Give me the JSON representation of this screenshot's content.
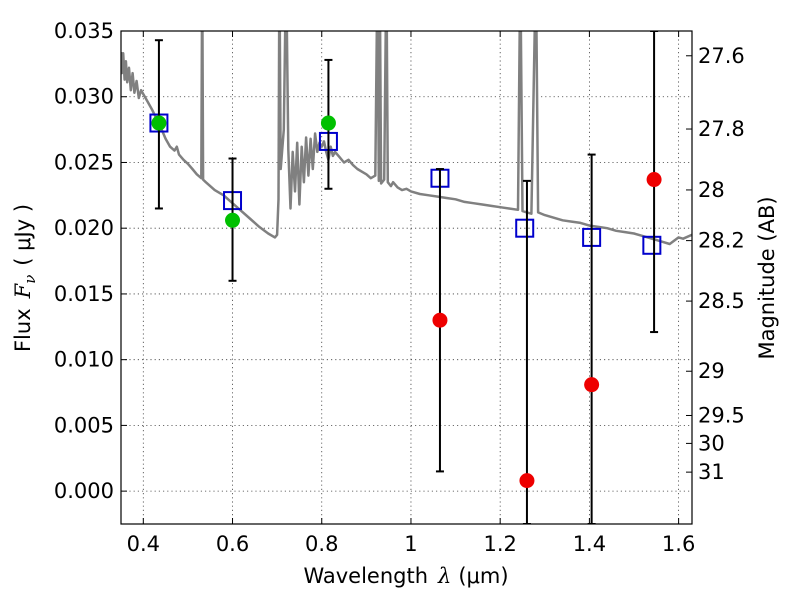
{
  "chart_data": {
    "type": "scatter",
    "title": "",
    "xlabel": "Wavelength",
    "xlabel_symbol": "λ",
    "xlabel_unit": "(μm)",
    "ylabel": "Flux",
    "ylabel_symbol": "F",
    "ylabel_subscript": "ν",
    "ylabel_unit": "( μJy )",
    "y2label": "Magnitude (AB)",
    "xlim": [
      0.35,
      1.63
    ],
    "ylim": [
      -0.0025,
      0.035
    ],
    "grid": true,
    "x_ticks": [
      0.4,
      0.6,
      0.8,
      1.0,
      1.2,
      1.4,
      1.6
    ],
    "x_tick_labels": [
      "0.4",
      "0.6",
      "0.8",
      "1",
      "1.2",
      "1.4",
      "1.6"
    ],
    "y_ticks": [
      0.0,
      0.005,
      0.01,
      0.015,
      0.02,
      0.025,
      0.03,
      0.035
    ],
    "y_tick_labels": [
      "0.000",
      "0.005",
      "0.010",
      "0.015",
      "0.020",
      "0.025",
      "0.030",
      "0.035"
    ],
    "mag_ticks": [
      27.6,
      27.8,
      28.0,
      28.2,
      28.5,
      29.0,
      29.5,
      30.0,
      31.0
    ],
    "mag_tick_labels": [
      "27.6",
      "27.8",
      "28",
      "28.2",
      "28.5",
      "29",
      "29.5",
      "30",
      "31"
    ],
    "colors": {
      "template": "#808080",
      "model": "#0000cc",
      "detected": "#00c000",
      "undetected": "#ee0000",
      "errorbar": "#000000"
    },
    "series": [
      {
        "kind": "line",
        "points": [
          [
            0.35,
            0.0334
          ],
          [
            0.352,
            0.0318
          ],
          [
            0.355,
            0.0333
          ],
          [
            0.358,
            0.0313
          ],
          [
            0.361,
            0.0327
          ],
          [
            0.364,
            0.0311
          ],
          [
            0.368,
            0.0322
          ],
          [
            0.372,
            0.0305
          ],
          [
            0.376,
            0.0318
          ],
          [
            0.38,
            0.0303
          ],
          [
            0.385,
            0.0312
          ],
          [
            0.39,
            0.0299
          ],
          [
            0.395,
            0.0305
          ],
          [
            0.4,
            0.0302
          ],
          [
            0.41,
            0.0296
          ],
          [
            0.42,
            0.029
          ],
          [
            0.43,
            0.0283
          ],
          [
            0.44,
            0.0276
          ],
          [
            0.45,
            0.0268
          ],
          [
            0.46,
            0.0262
          ],
          [
            0.47,
            0.0259
          ],
          [
            0.475,
            0.0262
          ],
          [
            0.48,
            0.0256
          ],
          [
            0.49,
            0.0252
          ],
          [
            0.5,
            0.0249
          ],
          [
            0.51,
            0.0245
          ],
          [
            0.52,
            0.0241
          ],
          [
            0.53,
            0.0238
          ],
          [
            0.532,
            0.04
          ],
          [
            0.534,
            0.0237
          ],
          [
            0.54,
            0.0235
          ],
          [
            0.56,
            0.0229
          ],
          [
            0.58,
            0.0225
          ],
          [
            0.6,
            0.0219
          ],
          [
            0.62,
            0.0213
          ],
          [
            0.64,
            0.0207
          ],
          [
            0.66,
            0.0201
          ],
          [
            0.68,
            0.0196
          ],
          [
            0.695,
            0.0193
          ],
          [
            0.7,
            0.0195
          ],
          [
            0.703,
            0.0222
          ],
          [
            0.705,
            0.04
          ],
          [
            0.708,
            0.0245
          ],
          [
            0.715,
            0.0275
          ],
          [
            0.72,
            0.04
          ],
          [
            0.725,
            0.026
          ],
          [
            0.73,
            0.0215
          ],
          [
            0.735,
            0.0258
          ],
          [
            0.74,
            0.0228
          ],
          [
            0.745,
            0.0265
          ],
          [
            0.75,
            0.0218
          ],
          [
            0.755,
            0.0262
          ],
          [
            0.76,
            0.0235
          ],
          [
            0.765,
            0.0269
          ],
          [
            0.77,
            0.024
          ],
          [
            0.775,
            0.0268
          ],
          [
            0.78,
            0.0245
          ],
          [
            0.785,
            0.0272
          ],
          [
            0.79,
            0.0258
          ],
          [
            0.795,
            0.0265
          ],
          [
            0.8,
            0.0262
          ],
          [
            0.805,
            0.0266
          ],
          [
            0.81,
            0.0258
          ],
          [
            0.815,
            0.0252
          ],
          [
            0.82,
            0.0262
          ],
          [
            0.825,
            0.0255
          ],
          [
            0.83,
            0.0258
          ],
          [
            0.84,
            0.0254
          ],
          [
            0.85,
            0.025
          ],
          [
            0.86,
            0.0252
          ],
          [
            0.87,
            0.0248
          ],
          [
            0.88,
            0.0245
          ],
          [
            0.89,
            0.0243
          ],
          [
            0.9,
            0.0241
          ],
          [
            0.91,
            0.0238
          ],
          [
            0.92,
            0.024
          ],
          [
            0.925,
            0.04
          ],
          [
            0.928,
            0.0236
          ],
          [
            0.93,
            0.04
          ],
          [
            0.933,
            0.0234
          ],
          [
            0.94,
            0.0237
          ],
          [
            0.945,
            0.04
          ],
          [
            0.948,
            0.0235
          ],
          [
            0.955,
            0.0232
          ],
          [
            0.96,
            0.0235
          ],
          [
            0.97,
            0.0231
          ],
          [
            0.98,
            0.0229
          ],
          [
            0.99,
            0.023
          ],
          [
            1.0,
            0.0228
          ],
          [
            1.02,
            0.0226
          ],
          [
            1.04,
            0.0225
          ],
          [
            1.06,
            0.0224
          ],
          [
            1.08,
            0.0223
          ],
          [
            1.1,
            0.0222
          ],
          [
            1.12,
            0.022
          ],
          [
            1.14,
            0.0219
          ],
          [
            1.16,
            0.0218
          ],
          [
            1.18,
            0.0217
          ],
          [
            1.2,
            0.0216
          ],
          [
            1.22,
            0.0215
          ],
          [
            1.24,
            0.0214
          ],
          [
            1.245,
            0.04
          ],
          [
            1.25,
            0.0213
          ],
          [
            1.26,
            0.0212
          ],
          [
            1.27,
            0.0211
          ],
          [
            1.28,
            0.04
          ],
          [
            1.285,
            0.0212
          ],
          [
            1.3,
            0.021
          ],
          [
            1.32,
            0.0208
          ],
          [
            1.34,
            0.0206
          ],
          [
            1.36,
            0.0205
          ],
          [
            1.38,
            0.0204
          ],
          [
            1.4,
            0.0202
          ],
          [
            1.42,
            0.0201
          ],
          [
            1.44,
            0.02
          ],
          [
            1.46,
            0.0198
          ],
          [
            1.48,
            0.0197
          ],
          [
            1.5,
            0.0196
          ],
          [
            1.52,
            0.0194
          ],
          [
            1.54,
            0.0192
          ],
          [
            1.56,
            0.019
          ],
          [
            1.58,
            0.0188
          ],
          [
            1.6,
            0.0193
          ],
          [
            1.61,
            0.0192
          ],
          [
            1.63,
            0.0195
          ]
        ]
      },
      {
        "kind": "model-squares",
        "points": [
          [
            0.435,
            0.028
          ],
          [
            0.6,
            0.0221
          ],
          [
            0.815,
            0.0266
          ],
          [
            1.065,
            0.0238
          ],
          [
            1.255,
            0.02
          ],
          [
            1.405,
            0.0193
          ],
          [
            1.54,
            0.0187
          ]
        ]
      },
      {
        "kind": "detected-points",
        "points": [
          [
            0.435,
            0.028,
            0.0215,
            0.0343
          ],
          [
            0.6,
            0.0206,
            0.016,
            0.0253
          ],
          [
            0.815,
            0.028,
            0.023,
            0.0328
          ]
        ]
      },
      {
        "kind": "undetected-points",
        "points": [
          [
            1.065,
            0.013,
            0.0015,
            0.0245
          ],
          [
            1.26,
            0.0008,
            -0.0025,
            0.0236
          ],
          [
            1.405,
            0.0081,
            -0.0025,
            0.0256
          ],
          [
            1.545,
            0.0237,
            0.0121,
            0.035
          ]
        ]
      }
    ]
  }
}
